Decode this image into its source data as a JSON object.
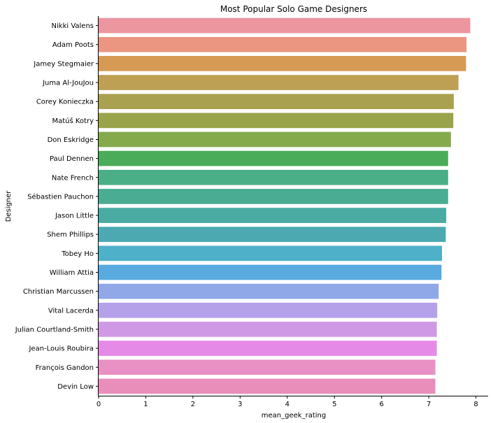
{
  "chart_data": {
    "type": "bar",
    "orientation": "horizontal",
    "title": "Most Popular Solo Game Designers",
    "xlabel": "mean_geek_rating",
    "ylabel": "Designer",
    "xlim": [
      0,
      8.3
    ],
    "xticks": [
      0,
      1,
      2,
      3,
      4,
      5,
      6,
      7,
      8
    ],
    "grid": false,
    "categories": [
      "Nikki Valens",
      "Adam Poots",
      "Jamey Stegmaier",
      "Juma Al-JouJou",
      "Corey Konieczka",
      "Matúš Kotry",
      "Don Eskridge",
      "Paul Dennen",
      "Nate French",
      "Sébastien Pauchon",
      "Jason Little",
      "Shem Phillips",
      "Tobey Ho",
      "William Attia",
      "Christian Marcussen",
      "Vital Lacerda",
      "Julian Courtland-Smith",
      "Jean-Louis Roubira",
      "François Gandon",
      "Devin Low"
    ],
    "values": [
      7.88,
      7.8,
      7.79,
      7.63,
      7.53,
      7.52,
      7.47,
      7.41,
      7.41,
      7.41,
      7.37,
      7.36,
      7.28,
      7.27,
      7.21,
      7.18,
      7.17,
      7.17,
      7.14,
      7.14
    ],
    "colors": [
      "#ec96a0",
      "#ea9680",
      "#d69a55",
      "#bda054",
      "#a9a150",
      "#99a44b",
      "#85aa4b",
      "#4aac59",
      "#4aae86",
      "#4aac92",
      "#4aaba2",
      "#4ca9b2",
      "#4eb0c9",
      "#58aadf",
      "#90a8e8",
      "#b4a1ea",
      "#cf99e6",
      "#e68ae8",
      "#e991c5",
      "#e98ebb"
    ]
  }
}
